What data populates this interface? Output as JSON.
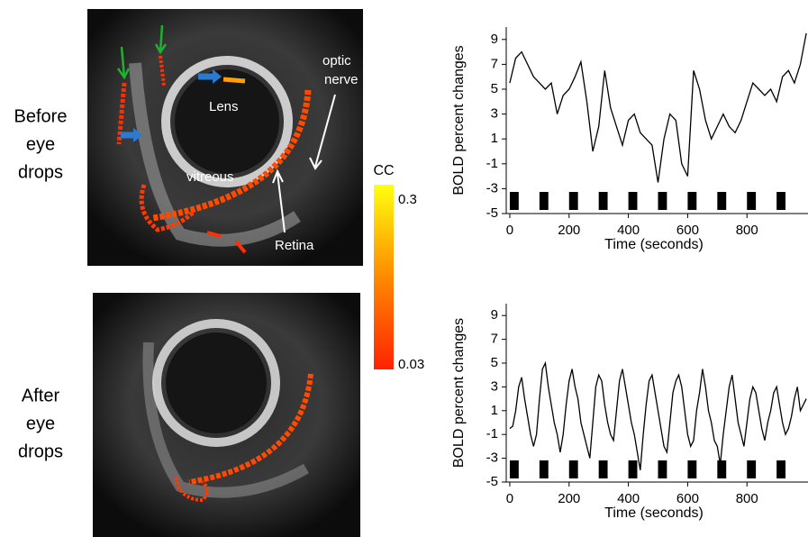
{
  "row_labels": [
    [
      "Before",
      "eye",
      "drops"
    ],
    [
      "After",
      "eye",
      "drops"
    ]
  ],
  "image_labels": [
    [
      "Lens"
    ],
    [
      "optic",
      "nerve"
    ],
    [
      "vitreous"
    ],
    [
      "Retina"
    ]
  ],
  "colorbar": {
    "title": "CC",
    "range": [
      0.03,
      0.3
    ],
    "ticks": [
      0.03,
      0.3
    ]
  },
  "chart_data": [
    {
      "type": "line",
      "xlabel": "Time (seconds)",
      "ylabel": "BOLD percent changes",
      "color": "#000000",
      "x": [
        0,
        20,
        40,
        60,
        80,
        100,
        120,
        140,
        160,
        180,
        200,
        220,
        240,
        260,
        280,
        300,
        320,
        340,
        360,
        380,
        400,
        420,
        440,
        460,
        480,
        500,
        520,
        540,
        560,
        580,
        600,
        620,
        640,
        660,
        680,
        700,
        720,
        740,
        760,
        780,
        800,
        820,
        840,
        860,
        880,
        900,
        920,
        940,
        960,
        980,
        1000
      ],
      "values": [
        5.5,
        7.5,
        8,
        7,
        6,
        5.5,
        5,
        5.5,
        3,
        4.5,
        5,
        6,
        7.2,
        4,
        0,
        2,
        6.5,
        3.5,
        2,
        0.5,
        2.5,
        3,
        1.5,
        1,
        0.5,
        -2.5,
        1,
        3,
        2.5,
        -1,
        -2,
        6.5,
        5,
        2.5,
        1,
        2,
        3,
        2,
        1.5,
        2.5,
        4,
        5.5,
        5,
        4.5,
        5,
        4,
        6,
        6.5,
        5.5,
        7,
        9.5
      ],
      "stimulus_onsets": [
        0,
        100,
        200,
        300,
        400,
        500,
        600,
        700,
        800,
        900
      ],
      "stimulus_duration": 30,
      "xlim": [
        -12,
        1015
      ],
      "xticks": [
        0,
        200,
        400,
        600,
        800
      ],
      "ylim": [
        -5,
        10
      ],
      "yticks": [
        -5,
        -3,
        -1,
        1,
        3,
        5,
        7,
        9
      ]
    },
    {
      "type": "line",
      "xlabel": "Time (seconds)",
      "ylabel": "BOLD percent changes",
      "color": "#000000",
      "x": [
        0,
        10,
        20,
        30,
        40,
        50,
        60,
        70,
        80,
        90,
        100,
        110,
        120,
        130,
        140,
        150,
        160,
        170,
        180,
        190,
        200,
        210,
        220,
        230,
        240,
        250,
        260,
        270,
        280,
        290,
        300,
        310,
        320,
        330,
        340,
        350,
        360,
        370,
        380,
        390,
        400,
        410,
        420,
        430,
        440,
        450,
        460,
        470,
        480,
        490,
        500,
        510,
        520,
        530,
        540,
        550,
        560,
        570,
        580,
        590,
        600,
        610,
        620,
        630,
        640,
        650,
        660,
        670,
        680,
        690,
        700,
        710,
        720,
        730,
        740,
        750,
        760,
        770,
        780,
        790,
        800,
        810,
        820,
        830,
        840,
        850,
        860,
        870,
        880,
        890,
        900,
        910,
        920,
        930,
        940,
        950,
        960,
        970,
        980,
        990,
        1000
      ],
      "values": [
        -0.5,
        -0.3,
        1,
        3,
        3.8,
        2,
        0.5,
        -1,
        -2,
        -1,
        2,
        4.5,
        5,
        3,
        1.5,
        0,
        -1,
        -2.5,
        -1,
        1.5,
        3.5,
        4.5,
        3,
        2,
        0,
        -1,
        -2,
        -3,
        0,
        3,
        4,
        3.5,
        1.5,
        0,
        -1,
        -1.5,
        1,
        3.5,
        4.5,
        3,
        1.5,
        0,
        -1,
        -2.5,
        -4,
        -1,
        1.5,
        3.5,
        4,
        2.5,
        1,
        -0.5,
        -2,
        -2.5,
        0,
        2.5,
        3.5,
        4,
        3,
        1,
        -1,
        -2,
        -1.5,
        1,
        2.5,
        4.5,
        3,
        1,
        0,
        -1.5,
        -2,
        -3.5,
        -1,
        1,
        3,
        4,
        2,
        0,
        -1,
        -2,
        0,
        2,
        3,
        2.5,
        1,
        -0.5,
        -1.5,
        0,
        1,
        2.5,
        3,
        1.5,
        0,
        -1,
        -0.5,
        0.5,
        2,
        3,
        1,
        1.5,
        2
      ],
      "stimulus_onsets": [
        0,
        100,
        200,
        300,
        400,
        500,
        600,
        700,
        800,
        900
      ],
      "stimulus_duration": 30,
      "xlim": [
        -12,
        1015
      ],
      "xticks": [
        0,
        200,
        400,
        600,
        800
      ],
      "ylim": [
        -5,
        10
      ],
      "yticks": [
        -5,
        -3,
        -1,
        1,
        3,
        5,
        7,
        9
      ]
    }
  ]
}
